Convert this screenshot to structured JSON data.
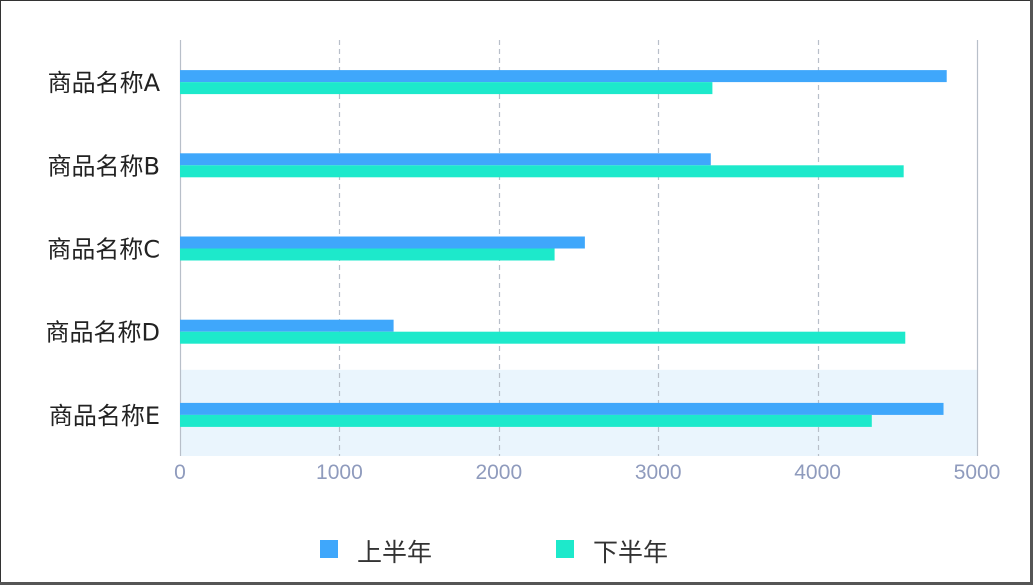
{
  "chart_data": {
    "type": "bar",
    "orientation": "horizontal",
    "categories": [
      "商品名称A",
      "商品名称B",
      "商品名称C",
      "商品名称D",
      "商品名称E"
    ],
    "series": [
      {
        "name": "上半年",
        "values": [
          4810,
          3330,
          2540,
          1340,
          4790
        ],
        "color": "#3fa7fb"
      },
      {
        "name": "下半年",
        "values": [
          3340,
          4540,
          2350,
          4550,
          4340
        ],
        "color": "#1de9cb"
      }
    ],
    "xlim": [
      0,
      5000
    ],
    "xticks": [
      "0",
      "1000",
      "2000",
      "3000",
      "4000",
      "5000"
    ],
    "grid": "vertical dashed",
    "legend_position": "bottom",
    "highlighted_category": "商品名称E",
    "highlight_color": "#eaf5fd",
    "axis_label_color": "#8f9bbd",
    "grid_color": "#b8bfc9"
  }
}
